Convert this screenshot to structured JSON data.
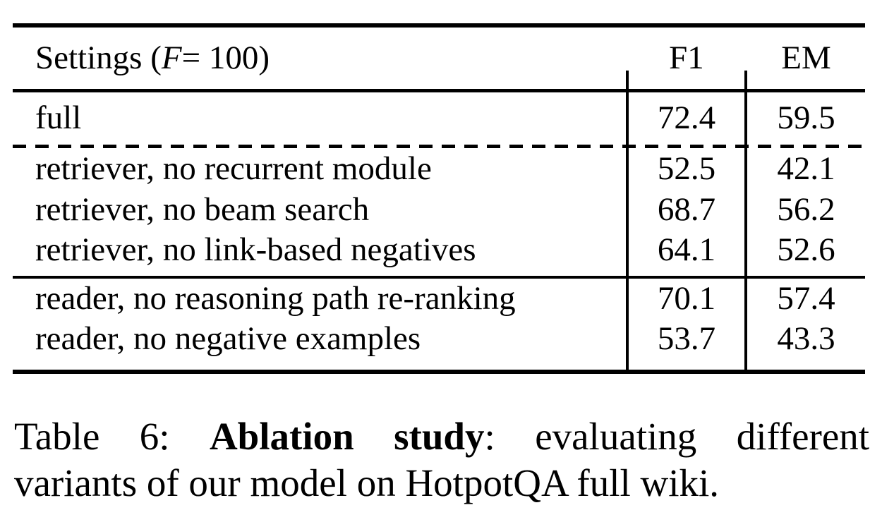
{
  "table": {
    "header": {
      "settings_prefix": "Settings (",
      "settings_var": "F",
      "settings_suffix": " = 100)",
      "col_f1": "F1",
      "col_em": "EM"
    },
    "rows": [
      {
        "setting": "full",
        "f1": "72.4",
        "em": "59.5"
      },
      {
        "setting": "retriever, no recurrent module",
        "f1": "52.5",
        "em": "42.1"
      },
      {
        "setting": "retriever, no beam search",
        "f1": "68.7",
        "em": "56.2"
      },
      {
        "setting": "retriever, no link-based negatives",
        "f1": "64.1",
        "em": "52.6"
      },
      {
        "setting": "reader, no reasoning path re-ranking",
        "f1": "70.1",
        "em": "57.4"
      },
      {
        "setting": "reader, no negative examples",
        "f1": "53.7",
        "em": "43.3"
      }
    ]
  },
  "caption": {
    "label": "Table 6:",
    "bold_phrase": "Ablation study",
    "after_bold": ":",
    "line1_rest": "evaluating different",
    "line2": "variants of our model on HotpotQA full wiki."
  },
  "colors": {
    "ink": "#000000",
    "background": "#ffffff"
  }
}
